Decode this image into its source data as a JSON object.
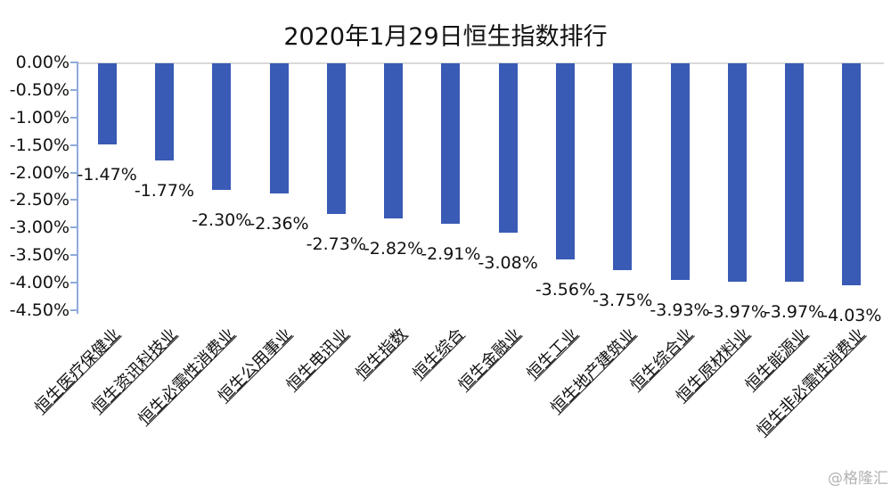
{
  "title_text": "2020年1月29日恒生指数排行",
  "watermark": "@格隆汇",
  "colors": {
    "bar": "#3a5bb5",
    "axis_line": "#8faadc",
    "zero_line": "#d9d9d9",
    "text": "#111111",
    "watermark": "#b3b3b3"
  },
  "chart_data": {
    "type": "bar",
    "title": "2020年1月29日恒生指数排行",
    "xlabel": "",
    "ylabel": "",
    "legend": false,
    "grid": "zero-line-only",
    "bar_orientation": "vertical-negative",
    "ylim": [
      -4.5,
      0
    ],
    "ytick_labels": [
      "0.00%",
      "-0.50%",
      "-1.00%",
      "-1.50%",
      "-2.00%",
      "-2.50%",
      "-3.00%",
      "-3.50%",
      "-4.00%",
      "-4.50%"
    ],
    "categories": [
      "恒生医疗保健业",
      "恒生资讯科技业",
      "恒生必需性消费业",
      "恒生公用事业",
      "恒生电讯业",
      "恒生指数",
      "恒生综合",
      "恒生金融业",
      "恒生工业",
      "恒生地产建筑业",
      "恒生综合业",
      "恒生原材料业",
      "恒生能源业",
      "恒生非必需性消费业"
    ],
    "values": [
      -1.47,
      -1.77,
      -2.3,
      -2.36,
      -2.73,
      -2.82,
      -2.91,
      -3.08,
      -3.56,
      -3.75,
      -3.93,
      -3.97,
      -3.97,
      -4.03
    ],
    "value_labels": [
      "-1.47%",
      "-1.77%",
      "-2.30%",
      "-2.36%",
      "-2.73%",
      "-2.82%",
      "-2.91%",
      "-3.08%",
      "-3.56%",
      "-3.75%",
      "-3.93%",
      "-3.97%",
      "-3.97%",
      "-4.03%"
    ]
  }
}
